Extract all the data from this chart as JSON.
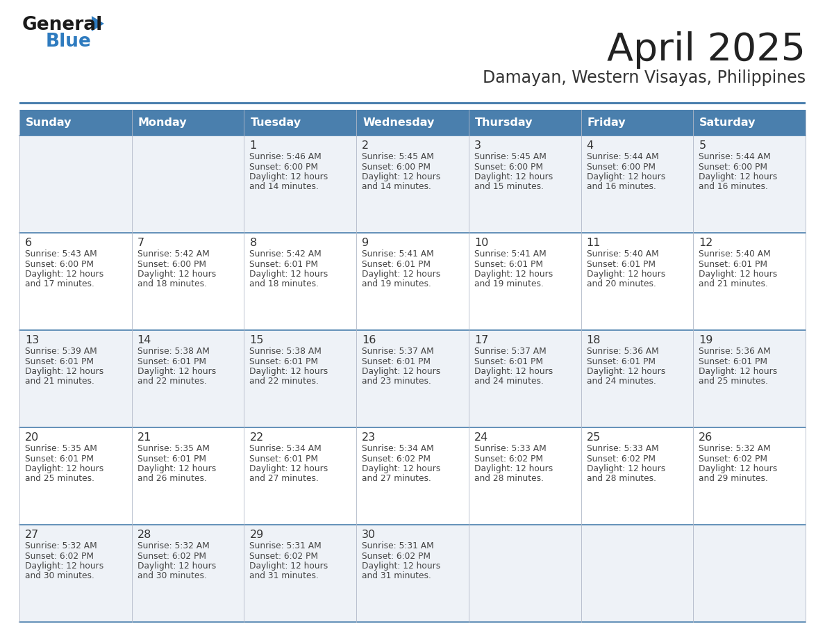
{
  "title": "April 2025",
  "subtitle": "Damayan, Western Visayas, Philippines",
  "header_bg_color": "#4a7fad",
  "header_text_color": "#ffffff",
  "row_bg_even": "#eef2f7",
  "row_bg_odd": "#ffffff",
  "cell_border_color": "#4a7fad",
  "day_headers": [
    "Sunday",
    "Monday",
    "Tuesday",
    "Wednesday",
    "Thursday",
    "Friday",
    "Saturday"
  ],
  "title_color": "#222222",
  "subtitle_color": "#333333",
  "day_number_color": "#333333",
  "cell_text_color": "#444444",
  "logo_general_color": "#1a1a1a",
  "logo_blue_color": "#2e7bbf",
  "logo_triangle_color": "#2e7bbf",
  "days": [
    {
      "day": 1,
      "col": 2,
      "row": 0,
      "sunrise": "5:46 AM",
      "sunset": "6:00 PM",
      "daylight_hours": 12,
      "daylight_minutes": 14
    },
    {
      "day": 2,
      "col": 3,
      "row": 0,
      "sunrise": "5:45 AM",
      "sunset": "6:00 PM",
      "daylight_hours": 12,
      "daylight_minutes": 14
    },
    {
      "day": 3,
      "col": 4,
      "row": 0,
      "sunrise": "5:45 AM",
      "sunset": "6:00 PM",
      "daylight_hours": 12,
      "daylight_minutes": 15
    },
    {
      "day": 4,
      "col": 5,
      "row": 0,
      "sunrise": "5:44 AM",
      "sunset": "6:00 PM",
      "daylight_hours": 12,
      "daylight_minutes": 16
    },
    {
      "day": 5,
      "col": 6,
      "row": 0,
      "sunrise": "5:44 AM",
      "sunset": "6:00 PM",
      "daylight_hours": 12,
      "daylight_minutes": 16
    },
    {
      "day": 6,
      "col": 0,
      "row": 1,
      "sunrise": "5:43 AM",
      "sunset": "6:00 PM",
      "daylight_hours": 12,
      "daylight_minutes": 17
    },
    {
      "day": 7,
      "col": 1,
      "row": 1,
      "sunrise": "5:42 AM",
      "sunset": "6:00 PM",
      "daylight_hours": 12,
      "daylight_minutes": 18
    },
    {
      "day": 8,
      "col": 2,
      "row": 1,
      "sunrise": "5:42 AM",
      "sunset": "6:01 PM",
      "daylight_hours": 12,
      "daylight_minutes": 18
    },
    {
      "day": 9,
      "col": 3,
      "row": 1,
      "sunrise": "5:41 AM",
      "sunset": "6:01 PM",
      "daylight_hours": 12,
      "daylight_minutes": 19
    },
    {
      "day": 10,
      "col": 4,
      "row": 1,
      "sunrise": "5:41 AM",
      "sunset": "6:01 PM",
      "daylight_hours": 12,
      "daylight_minutes": 19
    },
    {
      "day": 11,
      "col": 5,
      "row": 1,
      "sunrise": "5:40 AM",
      "sunset": "6:01 PM",
      "daylight_hours": 12,
      "daylight_minutes": 20
    },
    {
      "day": 12,
      "col": 6,
      "row": 1,
      "sunrise": "5:40 AM",
      "sunset": "6:01 PM",
      "daylight_hours": 12,
      "daylight_minutes": 21
    },
    {
      "day": 13,
      "col": 0,
      "row": 2,
      "sunrise": "5:39 AM",
      "sunset": "6:01 PM",
      "daylight_hours": 12,
      "daylight_minutes": 21
    },
    {
      "day": 14,
      "col": 1,
      "row": 2,
      "sunrise": "5:38 AM",
      "sunset": "6:01 PM",
      "daylight_hours": 12,
      "daylight_minutes": 22
    },
    {
      "day": 15,
      "col": 2,
      "row": 2,
      "sunrise": "5:38 AM",
      "sunset": "6:01 PM",
      "daylight_hours": 12,
      "daylight_minutes": 22
    },
    {
      "day": 16,
      "col": 3,
      "row": 2,
      "sunrise": "5:37 AM",
      "sunset": "6:01 PM",
      "daylight_hours": 12,
      "daylight_minutes": 23
    },
    {
      "day": 17,
      "col": 4,
      "row": 2,
      "sunrise": "5:37 AM",
      "sunset": "6:01 PM",
      "daylight_hours": 12,
      "daylight_minutes": 24
    },
    {
      "day": 18,
      "col": 5,
      "row": 2,
      "sunrise": "5:36 AM",
      "sunset": "6:01 PM",
      "daylight_hours": 12,
      "daylight_minutes": 24
    },
    {
      "day": 19,
      "col": 6,
      "row": 2,
      "sunrise": "5:36 AM",
      "sunset": "6:01 PM",
      "daylight_hours": 12,
      "daylight_minutes": 25
    },
    {
      "day": 20,
      "col": 0,
      "row": 3,
      "sunrise": "5:35 AM",
      "sunset": "6:01 PM",
      "daylight_hours": 12,
      "daylight_minutes": 25
    },
    {
      "day": 21,
      "col": 1,
      "row": 3,
      "sunrise": "5:35 AM",
      "sunset": "6:01 PM",
      "daylight_hours": 12,
      "daylight_minutes": 26
    },
    {
      "day": 22,
      "col": 2,
      "row": 3,
      "sunrise": "5:34 AM",
      "sunset": "6:01 PM",
      "daylight_hours": 12,
      "daylight_minutes": 27
    },
    {
      "day": 23,
      "col": 3,
      "row": 3,
      "sunrise": "5:34 AM",
      "sunset": "6:02 PM",
      "daylight_hours": 12,
      "daylight_minutes": 27
    },
    {
      "day": 24,
      "col": 4,
      "row": 3,
      "sunrise": "5:33 AM",
      "sunset": "6:02 PM",
      "daylight_hours": 12,
      "daylight_minutes": 28
    },
    {
      "day": 25,
      "col": 5,
      "row": 3,
      "sunrise": "5:33 AM",
      "sunset": "6:02 PM",
      "daylight_hours": 12,
      "daylight_minutes": 28
    },
    {
      "day": 26,
      "col": 6,
      "row": 3,
      "sunrise": "5:32 AM",
      "sunset": "6:02 PM",
      "daylight_hours": 12,
      "daylight_minutes": 29
    },
    {
      "day": 27,
      "col": 0,
      "row": 4,
      "sunrise": "5:32 AM",
      "sunset": "6:02 PM",
      "daylight_hours": 12,
      "daylight_minutes": 30
    },
    {
      "day": 28,
      "col": 1,
      "row": 4,
      "sunrise": "5:32 AM",
      "sunset": "6:02 PM",
      "daylight_hours": 12,
      "daylight_minutes": 30
    },
    {
      "day": 29,
      "col": 2,
      "row": 4,
      "sunrise": "5:31 AM",
      "sunset": "6:02 PM",
      "daylight_hours": 12,
      "daylight_minutes": 31
    },
    {
      "day": 30,
      "col": 3,
      "row": 4,
      "sunrise": "5:31 AM",
      "sunset": "6:02 PM",
      "daylight_hours": 12,
      "daylight_minutes": 31
    }
  ]
}
